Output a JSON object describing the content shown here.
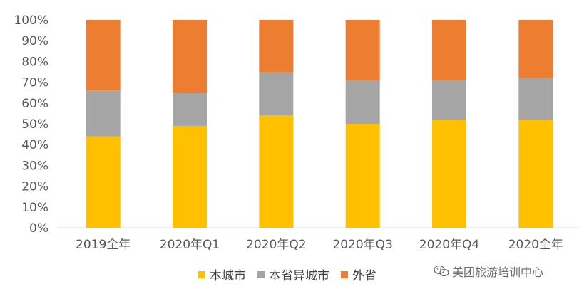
{
  "chart_data": {
    "type": "bar",
    "stacked": true,
    "categories": [
      "2019全年",
      "2020年Q1",
      "2020年Q2",
      "2020年Q3",
      "2020年Q4",
      "2020全年"
    ],
    "series": [
      {
        "name": "本城市",
        "color": "#FFC000",
        "values": [
          44,
          49,
          54,
          50,
          52,
          52
        ]
      },
      {
        "name": "本省异城市",
        "color": "#A5A5A5",
        "values": [
          22,
          16,
          21,
          21,
          19,
          20
        ]
      },
      {
        "name": "外省",
        "color": "#ED7D31",
        "values": [
          34,
          35,
          25,
          29,
          29,
          28
        ]
      }
    ],
    "ylim": [
      0,
      100
    ],
    "yticks": [
      "0%",
      "10%",
      "20%",
      "30%",
      "40%",
      "50%",
      "60%",
      "70%",
      "80%",
      "90%",
      "100%"
    ],
    "legend_position": "bottom",
    "grid": false
  },
  "watermark": {
    "text": "美团旅游培训中心",
    "icon": "wechat-icon"
  }
}
